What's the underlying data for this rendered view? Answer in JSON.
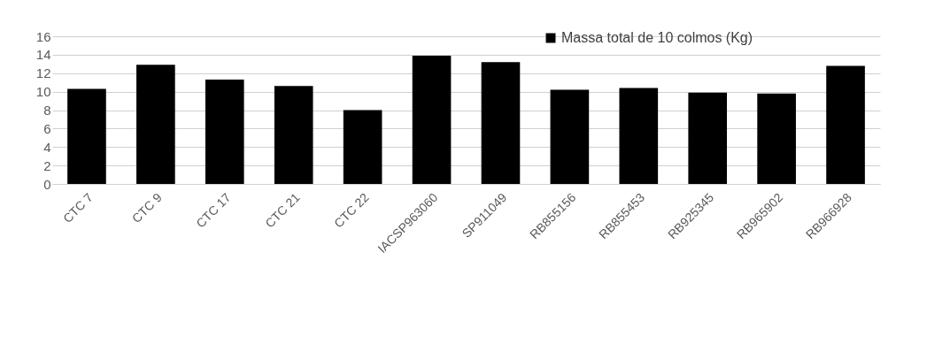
{
  "chart_data": {
    "type": "bar",
    "categories": [
      "CTC 7",
      "CTC 9",
      "CTC 17",
      "CTC 21",
      "CTC 22",
      "IACSP963060",
      "SP911049",
      "RB855156",
      "RB855453",
      "RB925345",
      "RB965902",
      "RB966928"
    ],
    "series": [
      {
        "name": "Massa total de 10 colmos (Kg)",
        "color": "#000000",
        "values": [
          10.3,
          12.9,
          11.3,
          10.6,
          8.0,
          13.9,
          13.2,
          10.2,
          10.4,
          9.9,
          9.8,
          12.8
        ]
      }
    ],
    "ylim": [
      0,
      16
    ],
    "yticks": [
      0,
      2,
      4,
      6,
      8,
      10,
      12,
      14,
      16
    ],
    "grid": "y",
    "legend": "top right"
  }
}
